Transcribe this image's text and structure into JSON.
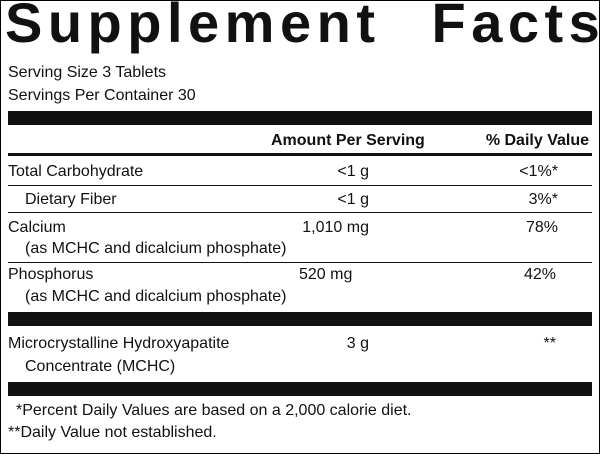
{
  "title": "Supplement Facts",
  "serving_info": [
    "Serving Size 3 Tablets",
    "Servings Per Container 30"
  ],
  "table": {
    "header": [
      "Amount Per Serving",
      "% Daily Value"
    ],
    "rows": [
      {
        "name": [
          "Total Carbohydrate"
        ],
        "amount": "<1 g",
        "daily_value": "<1%*"
      },
      {
        "name": [
          "Dietary Fiber"
        ],
        "amount": "<1 g",
        "daily_value": "3%*"
      },
      {
        "name": [
          "Calcium",
          "(as MCHC and dicalcium phosphate)"
        ],
        "amount": "1,010 mg",
        "daily_value": "78%"
      },
      {
        "name": [
          "Phosphorus",
          "(as MCHC and dicalcium phosphate)"
        ],
        "amount": "520 mg",
        "daily_value": "42%"
      },
      {
        "name": [
          "Microcrystalline Hydroxyapatite",
          "Concentrate (MCHC)"
        ],
        "amount": "3 g",
        "daily_value": "**"
      }
    ]
  },
  "footnotes": [
    "*Percent Daily Values are based on a 2,000 calorie diet.",
    "**Daily Value not established."
  ]
}
